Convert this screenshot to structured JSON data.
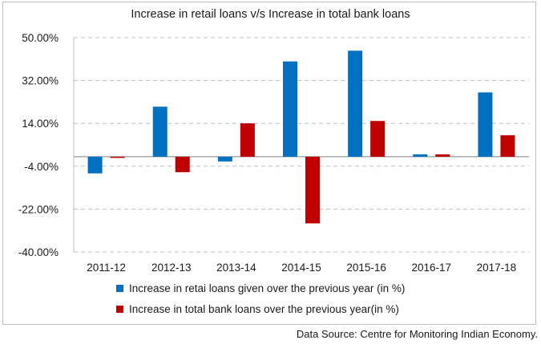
{
  "chart_data": {
    "type": "bar",
    "title": "Increase in retail loans v/s Increase in total bank loans",
    "categories": [
      "2011-12",
      "2012-13",
      "2013-14",
      "2014-15",
      "2015-16",
      "2016-17",
      "2017-18"
    ],
    "series": [
      {
        "name": "Increase in retai loans given over the previous year (in %)",
        "color": "#0070c0",
        "values": [
          -7,
          21,
          -2,
          40,
          44.5,
          1,
          27
        ]
      },
      {
        "name": "Increase in total bank loans over the previous year(in %)",
        "color": "#c00000",
        "values": [
          -0.5,
          -6.5,
          14,
          -28,
          15,
          1,
          9
        ]
      }
    ],
    "ylim": [
      -40,
      50
    ],
    "yticks": [
      50,
      32,
      14,
      -4,
      -22,
      -40
    ],
    "ytick_labels": [
      "50.00%",
      "32.00%",
      "14.00%",
      "-4.00%",
      "-22.00%",
      "-40.00%"
    ],
    "grid": true,
    "legend_position": "bottom"
  },
  "footer": {
    "source": "Data Source: Centre for Monitoring Indian Economy."
  }
}
